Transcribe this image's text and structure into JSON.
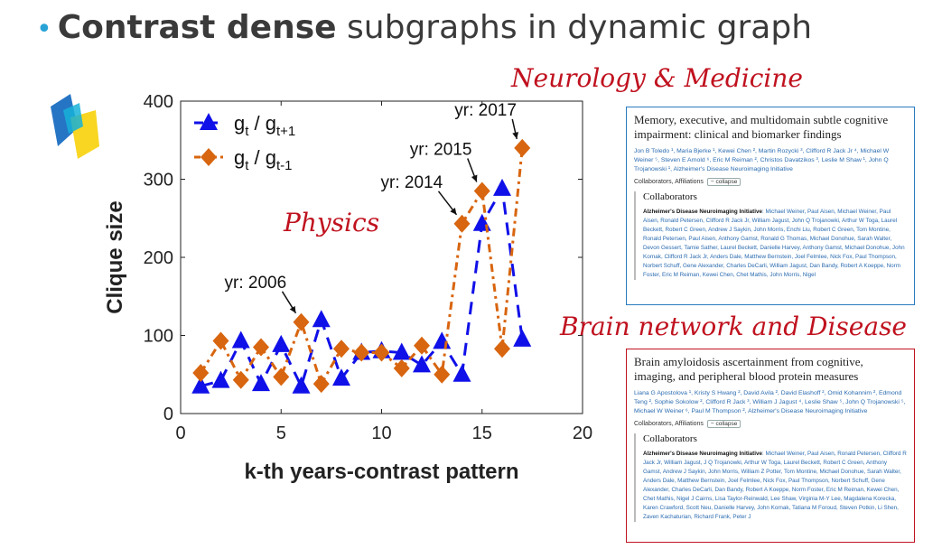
{
  "headline": {
    "bullet": "•",
    "bold": "Contrast dense",
    "rest": "subgraphs in dynamic graph"
  },
  "labels": {
    "neurology": "Neurology & Medicine",
    "physics": "Physics",
    "brain": "Brain network and Disease"
  },
  "colors": {
    "series1": "#1010e8",
    "series2": "#d8650f",
    "label_red": "#c0121f",
    "paper1_border": "#2a7bbf",
    "paper2_border": "#c0121f"
  },
  "chart_data": {
    "type": "line",
    "xlabel": "k-th years-contrast pattern",
    "ylabel": "Clique size",
    "xlim": [
      0,
      20
    ],
    "ylim": [
      0,
      400
    ],
    "xticks": [
      0,
      5,
      10,
      15,
      20
    ],
    "yticks": [
      0,
      100,
      200,
      300,
      400
    ],
    "grid": false,
    "legend_position": "top-left",
    "series": [
      {
        "name": "g_t / g_t+1",
        "label_main": "g",
        "label_sub1": "t",
        "label_sep": " / g",
        "label_sub2": "t+1",
        "color": "#1010e8",
        "marker": "triangle",
        "x": [
          1,
          2,
          3,
          4,
          5,
          6,
          7,
          8,
          9,
          10,
          11,
          12,
          13,
          14,
          15,
          16,
          17
        ],
        "y": [
          35,
          42,
          93,
          38,
          88,
          35,
          120,
          45,
          78,
          80,
          78,
          62,
          92,
          50,
          243,
          288,
          95
        ]
      },
      {
        "name": "g_t / g_t-1",
        "label_main": "g",
        "label_sub1": "t",
        "label_sep": " / g",
        "label_sub2": "t-1",
        "color": "#d8650f",
        "marker": "diamond",
        "x": [
          1,
          2,
          3,
          4,
          5,
          6,
          7,
          8,
          9,
          10,
          11,
          12,
          13,
          14,
          15,
          16,
          17
        ],
        "y": [
          52,
          93,
          43,
          85,
          47,
          117,
          38,
          83,
          78,
          78,
          58,
          87,
          50,
          243,
          285,
          83,
          340
        ]
      }
    ],
    "annotations": [
      {
        "text": "yr: 2006",
        "x": 6,
        "y": 117
      },
      {
        "text": "yr: 2014",
        "x": 14,
        "y": 243
      },
      {
        "text": "yr: 2015",
        "x": 15,
        "y": 285
      },
      {
        "text": "yr: 2017",
        "x": 17,
        "y": 340
      }
    ]
  },
  "paper1": {
    "title": "Memory, executive, and multidomain subtle cognitive impairment: clinical and biomarker findings",
    "authors": "Jon B Toledo ¹, Maria Bjerke ¹, Kewei Chen ², Martin Rozycki ³, Clifford R Jack Jr ⁴, Michael W Weiner ⁵, Steven E Arnold ⁶, Eric M Reiman ², Christos Davatzikos ³, Leslie M Shaw ¹, John Q Trojanowski ¹, Alzheimer's Disease Neuroimaging Initiative",
    "collab_label": "Collaborators, Affiliations",
    "collapse": "collapse",
    "collab_head": "Collaborators",
    "collab_org": "Alzheimer's Disease Neuroimaging Initiative",
    "collab_names": ": Michael Weiner, Paul Aisen, Michael Weiner, Paul Aisen, Ronald Petersen, Clifford R Jack Jr, William Jagust, John Q Trojanowki, Arthur W Toga, Laurel Beckett, Robert C Green, Andrew J Saykin, John Morris, Enchi Liu, Robert C Green, Tom Montine, Ronald Petersen, Paul Aisen, Anthony Gamst, Ronald G Thomas, Michael Donohue, Sarah Walter, Devon Gessert, Tamie Sather, Laurel Beckett, Danielle Harvey, Anthony Gamst, Michael Donohue, John Kornak, Clifford R Jack Jr, Anders Dale, Matthew Bernstein, Joel Felmlee, Nick Fox, Paul Thompson, Norbert Schuff, Gene Alexander, Charles DeCarli, William Jagust, Dan Bandy, Robert A Koeppe, Norm Foster, Eric M Reiman, Kewei Chen, Chet Mathis, John Morris, Nigel"
  },
  "paper2": {
    "title": "Brain amyloidosis ascertainment from cognitive, imaging, and peripheral blood protein measures",
    "authors": "Liana G Apostolova ¹, Kristy S Hwang ², David Avila ², David Elashoff ², Omid Kohannim ², Edmond Teng ², Sophie Sokolow ², Clifford R Jack ³, William J Jagust ⁴, Leslie Shaw ⁵, John Q Trojanowski ⁵, Michael W Weiner ⁶, Paul M Thompson ², Alzheimer's Disease Neuroimaging Initiative",
    "collab_label": "Collaborators, Affiliations",
    "collapse": "collapse",
    "collab_head": "Collaborators",
    "collab_org": "Alzheimer's Disease Neuroimaging Initiative",
    "collab_names": ": Michael Weiner, Paul Aisen, Ronald Petersen, Clifford R Jack Jr, William Jagust, J Q Trojanowki, Arthur W Toga, Laurel Beckett, Robert C Green, Anthony Gamst, Andrew J Saykin, John Morris, William Z Potter, Tom Montine, Michael Donohue, Sarah Walter, Anders Dale, Matthew Bernstein, Joel Felmlee, Nick Fox, Paul Thompson, Norbert Schuff, Gene Alexander, Charles DeCarli, Dan Bandy, Robert A Koeppe, Norm Foster, Eric M Reiman, Kewei Chen, Chet Mathis, Nigel J Cairns, Lisa Taylor-Reinwald, Lee Shaw, Virginia M-Y Lee, Magdalena Korecka, Karen Crawford, Scott Neu, Danielle Harvey, John Kornak, Tatiana M Foroud, Steven Potkin, Li Shen, Zaven Kachaturian, Richard Frank, Peter J"
  },
  "logo": {
    "name": "colored-blocks-logo"
  }
}
